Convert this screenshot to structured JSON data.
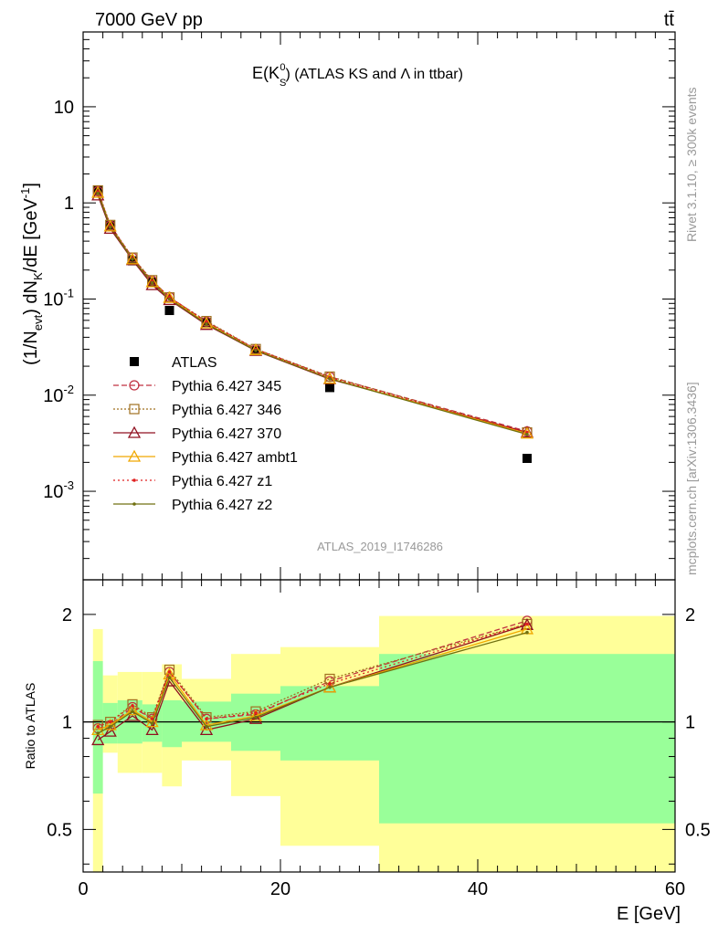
{
  "header": {
    "energy_label": "7000 GeV pp",
    "process_label": "tt̄"
  },
  "main_title": {
    "prefix": "E(K",
    "sub": "S",
    "sup": "0",
    "suffix": ") (ATLAS KS and Λ in ttbar)"
  },
  "side_text": {
    "rivet": "Rivet 3.1.10, ≥ 300k events",
    "mcplots": "mcplots.cern.ch [arXiv:1306.3436]"
  },
  "analysis_id": "ATLAS_2019_I1746286",
  "axes": {
    "y_main_label": "(1/N_evt) dN_K/dE [GeV^-1]",
    "y_ratio_label": "Ratio to ATLAS",
    "x_label": "E [GeV]",
    "x_ticks": [
      "0",
      "20",
      "40",
      "60"
    ],
    "y_main_ticks": [
      "10^-3",
      "10^-2",
      "10^-1",
      "1",
      "10"
    ],
    "y_ratio_ticks": [
      "0.5",
      "1",
      "2"
    ]
  },
  "colors": {
    "band_outer": "#ffff99",
    "band_inner": "#99ff99",
    "data": "#000000",
    "p345": "#c03040",
    "p346": "#a07020",
    "p370": "#901020",
    "ambt1": "#f0a800",
    "z1": "#e02020",
    "z2": "#707010"
  },
  "chart_data": {
    "type": "scatter",
    "x_range": [
      0,
      60
    ],
    "main": {
      "y_scale": "log",
      "y_range": [
        0.00012,
        60
      ],
      "x": [
        1.5,
        2.75,
        5.0,
        7.0,
        8.75,
        12.5,
        17.5,
        25.0,
        45.0
      ],
      "x_bins": [
        [
          1,
          2
        ],
        [
          2,
          3.5
        ],
        [
          3.5,
          6
        ],
        [
          6,
          8
        ],
        [
          8,
          10
        ],
        [
          10,
          15
        ],
        [
          15,
          20
        ],
        [
          20,
          30
        ],
        [
          30,
          60
        ]
      ],
      "series": [
        {
          "name": "ATLAS",
          "key": "data",
          "marker": "square-filled",
          "values": [
            1.35,
            0.58,
            0.25,
            0.15,
            0.076,
            0.057,
            0.029,
            0.012,
            0.0022
          ]
        },
        {
          "name": "Pythia 6.427 345",
          "key": "p345",
          "marker": "circle-open",
          "dash": "6,3",
          "values": [
            1.32,
            0.58,
            0.27,
            0.155,
            0.105,
            0.058,
            0.03,
            0.0155,
            0.0042
          ]
        },
        {
          "name": "Pythia 6.427 346",
          "key": "p346",
          "marker": "square-open",
          "dash": "2,2",
          "values": [
            1.35,
            0.59,
            0.27,
            0.157,
            0.104,
            0.059,
            0.0302,
            0.0156,
            0.0041
          ]
        },
        {
          "name": "Pythia 6.427 370",
          "key": "p370",
          "marker": "triangle-open",
          "dash": "",
          "values": [
            1.2,
            0.54,
            0.255,
            0.14,
            0.098,
            0.054,
            0.029,
            0.0147,
            0.0041
          ]
        },
        {
          "name": "Pythia 6.427 ambt1",
          "key": "ambt1",
          "marker": "triangle-open",
          "dash": "",
          "values": [
            1.28,
            0.57,
            0.26,
            0.15,
            0.103,
            0.056,
            0.0295,
            0.0149,
            0.004
          ]
        },
        {
          "name": "Pythia 6.427 z1",
          "key": "z1",
          "marker": "dot",
          "dash": "2,3",
          "values": [
            1.3,
            0.58,
            0.265,
            0.153,
            0.104,
            0.058,
            0.03,
            0.0152,
            0.0041
          ]
        },
        {
          "name": "Pythia 6.427 z2",
          "key": "z2",
          "marker": "dot",
          "dash": "",
          "values": [
            1.26,
            0.56,
            0.26,
            0.148,
            0.1,
            0.055,
            0.0292,
            0.0148,
            0.0039
          ]
        }
      ]
    },
    "ratio": {
      "y_scale": "log",
      "y_range": [
        0.38,
        2.5
      ],
      "reference_line": 1,
      "band_inner": [
        [
          0.63,
          1.48
        ],
        [
          0.87,
          1.13
        ],
        [
          0.87,
          1.15
        ],
        [
          0.88,
          1.12
        ],
        [
          0.85,
          1.15
        ],
        [
          0.88,
          1.14
        ],
        [
          0.83,
          1.2
        ],
        [
          0.78,
          1.26
        ],
        [
          0.52,
          1.55
        ]
      ],
      "band_outer": [
        [
          0.35,
          1.82
        ],
        [
          0.82,
          1.35
        ],
        [
          0.72,
          1.38
        ],
        [
          0.72,
          1.38
        ],
        [
          0.66,
          1.45
        ],
        [
          0.78,
          1.32
        ],
        [
          0.62,
          1.55
        ],
        [
          0.45,
          1.62
        ],
        [
          0.35,
          1.98
        ]
      ],
      "series": [
        {
          "name": "Pythia 6.427 345",
          "key": "p345",
          "values": [
            0.96,
            0.98,
            1.1,
            1.02,
            1.38,
            1.02,
            1.05,
            1.3,
            1.92
          ]
        },
        {
          "name": "Pythia 6.427 346",
          "key": "p346",
          "values": [
            0.98,
            1.0,
            1.12,
            1.03,
            1.4,
            1.03,
            1.07,
            1.32,
            1.88
          ]
        },
        {
          "name": "Pythia 6.427 370",
          "key": "p370",
          "values": [
            0.89,
            0.94,
            1.04,
            0.95,
            1.3,
            0.95,
            1.02,
            1.25,
            1.87
          ]
        },
        {
          "name": "Pythia 6.427 ambt1",
          "key": "ambt1",
          "values": [
            0.95,
            0.98,
            1.08,
            1.0,
            1.36,
            0.98,
            1.04,
            1.25,
            1.82
          ]
        },
        {
          "name": "Pythia 6.427 z1",
          "key": "z1",
          "values": [
            0.97,
            1.0,
            1.11,
            1.02,
            1.38,
            1.02,
            1.06,
            1.28,
            1.88
          ]
        },
        {
          "name": "Pythia 6.427 z2",
          "key": "z2",
          "values": [
            0.93,
            0.97,
            1.07,
            0.99,
            1.33,
            0.97,
            1.03,
            1.25,
            1.78
          ]
        }
      ]
    }
  }
}
